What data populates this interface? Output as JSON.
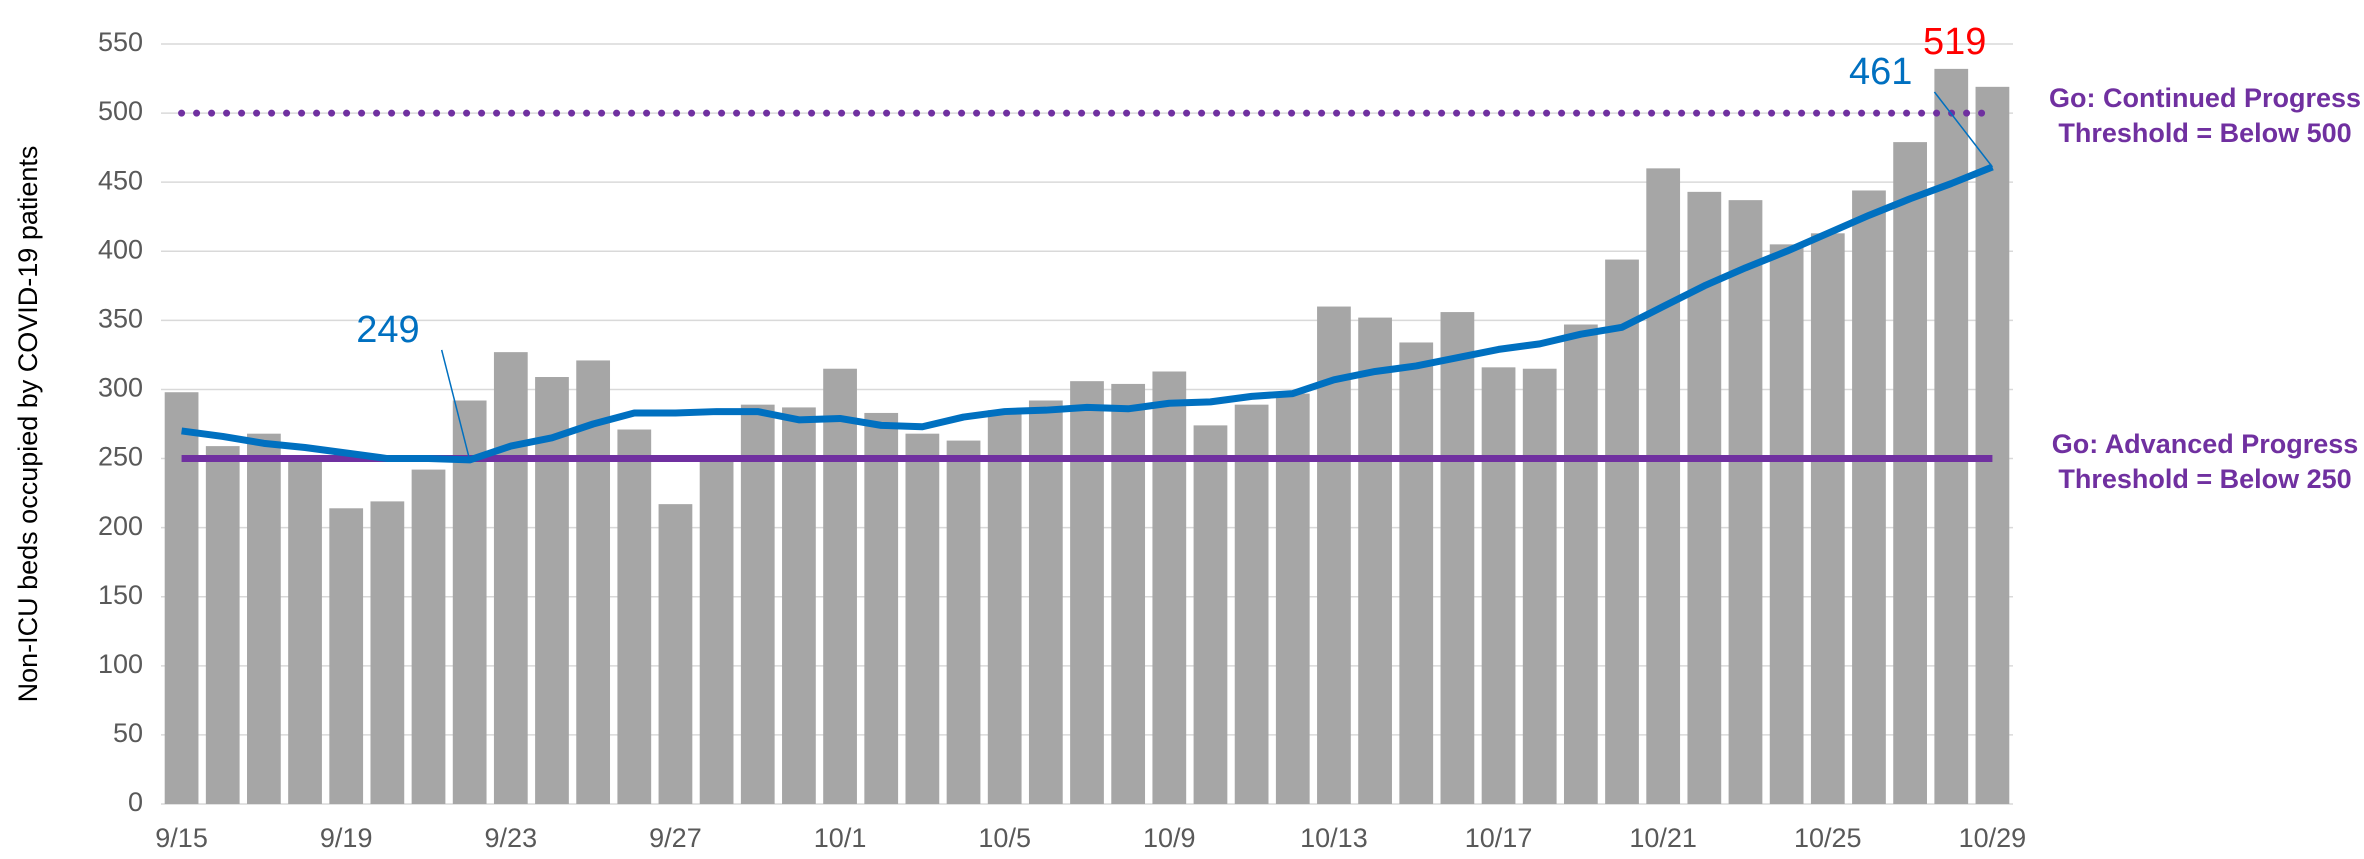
{
  "chart_data": {
    "type": "bar",
    "y_label": "Non-ICU beds occupied by COVID-19 patients",
    "categories": [
      "9/15",
      null,
      null,
      null,
      "9/19",
      null,
      null,
      null,
      "9/23",
      null,
      null,
      null,
      "9/27",
      null,
      null,
      null,
      "10/1",
      null,
      null,
      null,
      "10/5",
      null,
      null,
      null,
      "10/9",
      null,
      null,
      null,
      "10/13",
      null,
      null,
      null,
      "10/17",
      null,
      null,
      null,
      "10/21",
      null,
      null,
      null,
      "10/25",
      null,
      null,
      null,
      "10/29"
    ],
    "series": [
      {
        "type": "bar",
        "color": "#a6a6a6",
        "values": [
          298,
          259,
          268,
          252,
          214,
          219,
          242,
          292,
          327,
          309,
          321,
          271,
          217,
          250,
          289,
          287,
          315,
          283,
          268,
          263,
          285,
          292,
          306,
          304,
          313,
          274,
          289,
          297,
          360,
          352,
          334,
          356,
          316,
          315,
          347,
          394,
          460,
          443,
          437,
          405,
          413,
          444,
          479,
          532,
          519
        ]
      },
      {
        "type": "line",
        "color": "#0070c0",
        "values": [
          270,
          266,
          261,
          258,
          254,
          250,
          250,
          249,
          259,
          265,
          275,
          283,
          283,
          284,
          284,
          278,
          279,
          274,
          273,
          280,
          284,
          285,
          287,
          286,
          290,
          291,
          295,
          297,
          307,
          313,
          317,
          323,
          329,
          333,
          340,
          345,
          360,
          375,
          388,
          400,
          413,
          426,
          438,
          449,
          461
        ]
      }
    ],
    "reference_lines": [
      {
        "value": 500,
        "style": "dotted",
        "color": "#7030a0",
        "label": "Go: Continued Progress Threshold = Below 500"
      },
      {
        "value": 250,
        "style": "solid",
        "color": "#7030a0",
        "label": "Go: Advanced Progress Threshold = Below 250"
      }
    ],
    "annotations": [
      {
        "value": 519,
        "color": "#ff0000"
      },
      {
        "value": 461,
        "color": "#0070c0"
      },
      {
        "value": 249,
        "color": "#0070c0"
      }
    ],
    "ylim": [
      0,
      550
    ],
    "yticks": [
      0,
      50,
      100,
      150,
      200,
      250,
      300,
      350,
      400,
      450,
      500,
      550
    ],
    "grid": true
  }
}
